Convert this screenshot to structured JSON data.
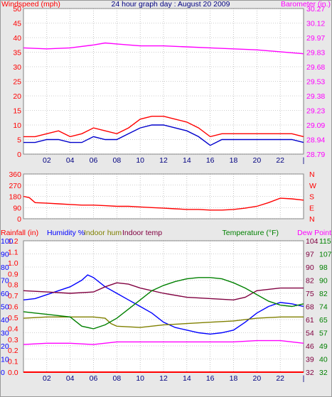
{
  "colors": {
    "wind": "#ff0000",
    "gust": "#0000cc",
    "baro": "#ff00ff",
    "dir": "#ff0000",
    "rain": "#ff0000",
    "humidity": "#0000ff",
    "indoor_hum": "#808000",
    "indoor_temp": "#800040",
    "temperature": "#008000",
    "dew_point": "#ff00ff",
    "grid": "#a0a0a0"
  },
  "chart_data": [
    {
      "type": "line",
      "title": "24 hour graph day : August 20 2009",
      "left_label": "Windspeed (mph)",
      "right_label": "Barometer (in.)",
      "xticks": [
        "02",
        "04",
        "06",
        "08",
        "10",
        "12",
        "14",
        "16",
        "18",
        "20",
        "22"
      ],
      "x_end_tick": "|",
      "yleft_ticks": [
        "0",
        "5",
        "10",
        "15",
        "20",
        "25",
        "30",
        "35",
        "40",
        "45",
        "50"
      ],
      "yright_ticks": [
        "28.79",
        "28.94",
        "29.09",
        "29.23",
        "29.38",
        "29.53",
        "29.68",
        "29.83",
        "29.97",
        "30.12",
        "30.27"
      ],
      "ylim_left": [
        0,
        50
      ],
      "ylim_right": [
        28.79,
        30.27
      ],
      "series": [
        {
          "key": "wind_avg",
          "color_key": "wind",
          "axis": "left",
          "x": [
            0,
            1,
            2,
            3,
            4,
            5,
            6,
            7,
            8,
            9,
            10,
            11,
            12,
            13,
            14,
            15,
            16,
            17,
            18,
            19,
            20,
            21,
            22,
            23,
            24
          ],
          "values": [
            6,
            6,
            7,
            8,
            6,
            7,
            9,
            8,
            7,
            9,
            12,
            13,
            13,
            12,
            11,
            9,
            6,
            7,
            7,
            7,
            7,
            7,
            7,
            7,
            6
          ]
        },
        {
          "key": "wind_low",
          "color_key": "gust",
          "axis": "left",
          "x": [
            0,
            1,
            2,
            3,
            4,
            5,
            6,
            7,
            8,
            9,
            10,
            11,
            12,
            13,
            14,
            15,
            16,
            17,
            18,
            19,
            20,
            21,
            22,
            23,
            24
          ],
          "values": [
            4,
            4,
            5,
            5,
            4,
            4,
            6,
            5,
            5,
            7,
            9,
            10,
            10,
            9,
            8,
            6,
            3,
            5,
            5,
            5,
            5,
            5,
            5,
            5,
            4
          ]
        },
        {
          "key": "barometer",
          "color_key": "baro",
          "axis": "right",
          "x": [
            0,
            2,
            4,
            6,
            7,
            8,
            10,
            12,
            14,
            16,
            18,
            20,
            22,
            24
          ],
          "values": [
            29.87,
            29.86,
            29.87,
            29.9,
            29.92,
            29.91,
            29.89,
            29.89,
            29.88,
            29.87,
            29.86,
            29.85,
            29.83,
            29.81
          ]
        }
      ]
    },
    {
      "type": "line",
      "left_ticks": [
        "0",
        "90",
        "180",
        "270",
        "360"
      ],
      "right_ticks": [
        "N",
        "W",
        "S",
        "E",
        "N"
      ],
      "ylim": [
        0,
        360
      ],
      "series": [
        {
          "key": "wind_dir",
          "color_key": "dir",
          "x": [
            0,
            0.5,
            1,
            2,
            3,
            4,
            5,
            6,
            7,
            8,
            9,
            10,
            11,
            12,
            13,
            14,
            15,
            16,
            17,
            18,
            19,
            20,
            21,
            22,
            23,
            24
          ],
          "values": [
            180,
            170,
            130,
            125,
            120,
            115,
            110,
            110,
            105,
            100,
            100,
            95,
            90,
            85,
            80,
            75,
            75,
            70,
            70,
            75,
            85,
            100,
            130,
            165,
            160,
            150
          ]
        }
      ]
    },
    {
      "type": "line",
      "labels": {
        "rainfall": "Rainfall (in)",
        "humidity": "Humidity %",
        "indoor_hum": "Indoor hum",
        "indoor_temp": "Indoor temp",
        "temperature": "Temperature (°F)",
        "dew_point": "Dew Point"
      },
      "axis_rain": [
        "0.0",
        "0.1",
        "0.2",
        "0.3",
        "0.4",
        "0.5",
        "0.6",
        "0.7",
        "0.8",
        "0.9",
        "1.0",
        "1.1",
        "1.2"
      ],
      "axis_hum": [
        "0",
        "10",
        "20",
        "30",
        "40",
        "50",
        "60",
        "70",
        "80",
        "90",
        "100"
      ],
      "axis_indoor": [
        "32",
        "39",
        "46",
        "54",
        "61",
        "68",
        "75",
        "82",
        "90",
        "97",
        "104"
      ],
      "axis_temp": [
        "32",
        "40",
        "49",
        "57",
        "65",
        "74",
        "82",
        "90",
        "98",
        "107",
        "115"
      ],
      "ylim_hum": [
        0,
        100
      ],
      "series": [
        {
          "key": "rain",
          "color_key": "rain",
          "x": [
            0,
            24
          ],
          "values": [
            0,
            0
          ]
        },
        {
          "key": "humidity",
          "color_key": "humidity",
          "x": [
            0,
            1,
            2,
            3,
            4,
            5,
            5.5,
            6,
            7,
            8,
            9,
            10,
            11,
            12,
            13,
            14,
            15,
            16,
            17,
            18,
            19,
            20,
            21,
            22,
            23,
            24
          ],
          "values": [
            55,
            56,
            59,
            62,
            65,
            70,
            74,
            72,
            65,
            60,
            55,
            50,
            45,
            38,
            34,
            32,
            30,
            29,
            30,
            32,
            38,
            45,
            50,
            53,
            52,
            50
          ]
        },
        {
          "key": "indoor_hum",
          "color_key": "indoor_hum",
          "x": [
            0,
            2,
            4,
            6,
            7,
            7.5,
            8,
            10,
            12,
            14,
            16,
            18,
            20,
            22,
            24
          ],
          "values": [
            41,
            42,
            42,
            42,
            41,
            37,
            35,
            34,
            36,
            37,
            38,
            39,
            41,
            42,
            42
          ]
        },
        {
          "key": "indoor_temp",
          "color_key": "indoor_temp",
          "x": [
            0,
            2,
            4,
            6,
            7,
            8,
            9,
            10,
            12,
            14,
            16,
            18,
            19,
            20,
            22,
            24
          ],
          "values": [
            62,
            61,
            60,
            61,
            65,
            68,
            67,
            64,
            60,
            57,
            56,
            55,
            57,
            62,
            64,
            64
          ]
        },
        {
          "key": "temperature",
          "color_key": "temperature",
          "x": [
            0,
            1,
            2,
            3,
            4,
            5,
            6,
            7,
            8,
            9,
            10,
            11,
            12,
            13,
            14,
            15,
            16,
            17,
            18,
            19,
            20,
            21,
            22,
            23,
            24
          ],
          "values": [
            46,
            45,
            44,
            43,
            42,
            35,
            33,
            36,
            41,
            48,
            55,
            62,
            66,
            69,
            71,
            72,
            72,
            71,
            68,
            64,
            59,
            54,
            51,
            50,
            52
          ]
        },
        {
          "key": "dew_point",
          "color_key": "dew_point",
          "x": [
            0,
            2,
            4,
            6,
            8,
            10,
            12,
            14,
            16,
            18,
            20,
            22,
            24
          ],
          "values": [
            21,
            22,
            22,
            21,
            23,
            23,
            23,
            23,
            23,
            23,
            24,
            24,
            22
          ]
        }
      ]
    }
  ]
}
